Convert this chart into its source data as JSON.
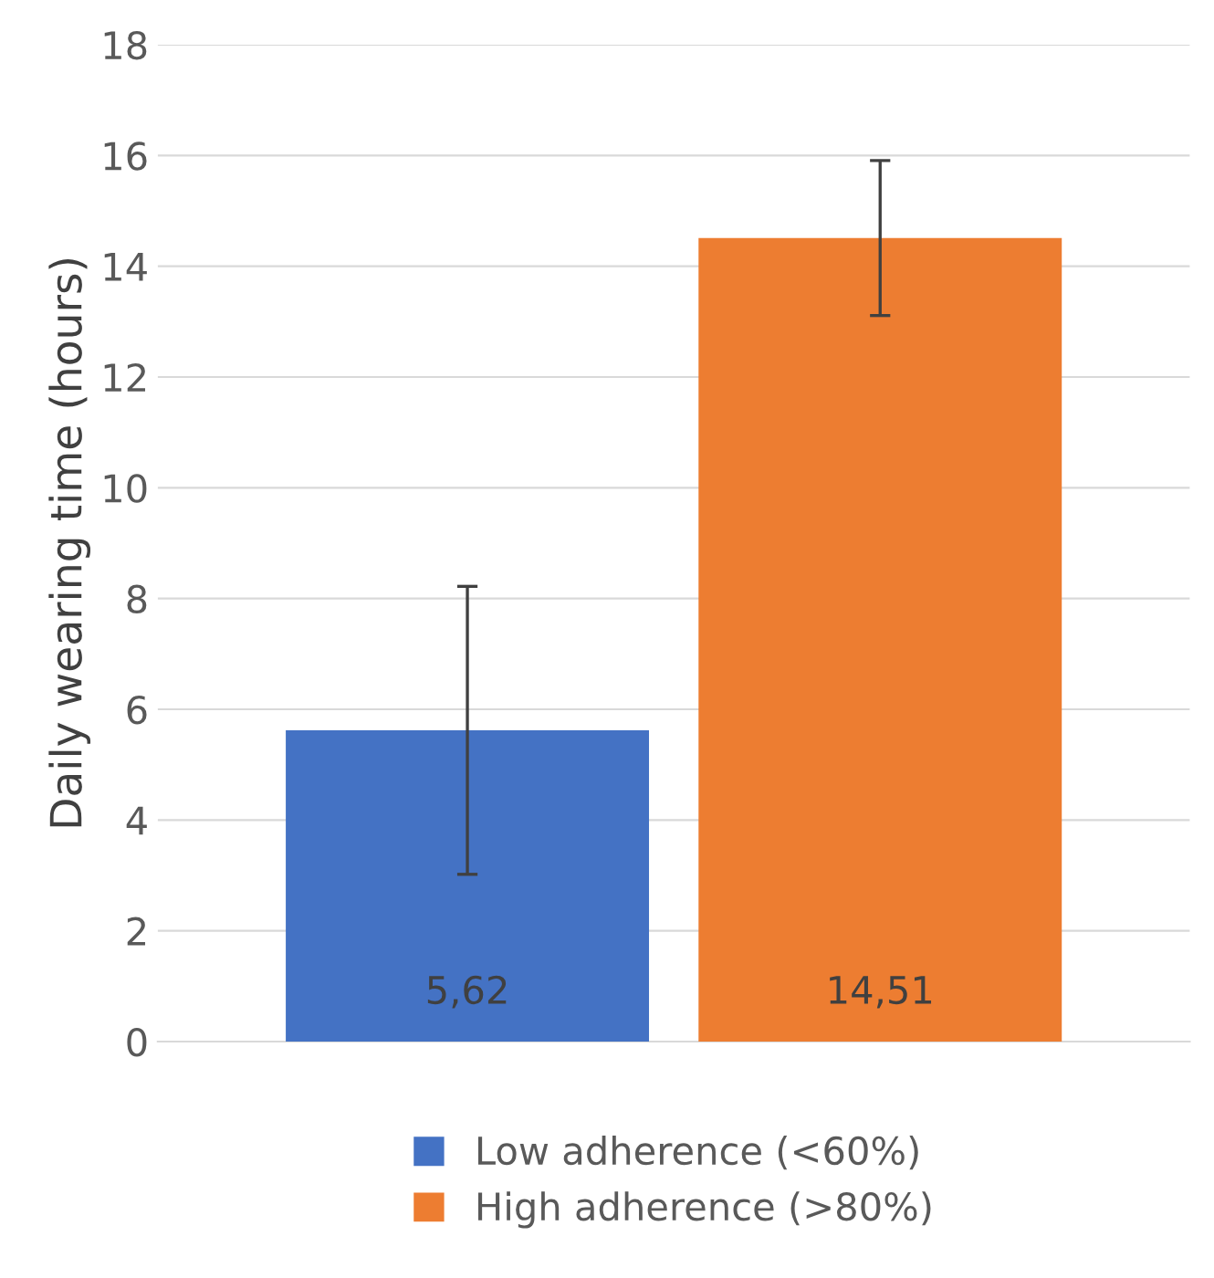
{
  "chart_data": {
    "type": "bar",
    "ylabel": "Daily wearing time (hours)",
    "categories": [
      null
    ],
    "series": [
      {
        "name": "Low adherence (<60%)",
        "color": "#4472c4",
        "values": [
          5.62
        ],
        "errors": [
          2.6
        ],
        "value_labels": [
          "5,62"
        ]
      },
      {
        "name": "High adherence (>80%)",
        "color": "#ed7d31",
        "values": [
          14.51
        ],
        "errors": [
          1.4
        ],
        "value_labels": [
          "14,51"
        ]
      }
    ],
    "ylim": [
      0,
      18
    ],
    "yticks": [
      0,
      2,
      4,
      6,
      8,
      10,
      12,
      14,
      16,
      18
    ],
    "grid": "y",
    "legend": "bottom"
  }
}
